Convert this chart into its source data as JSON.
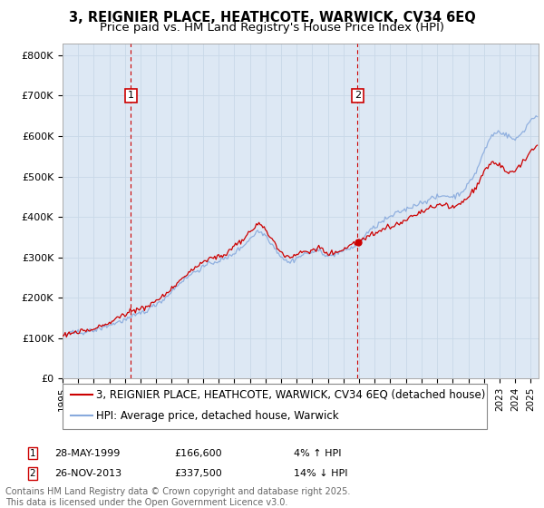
{
  "title": "3, REIGNIER PLACE, HEATHCOTE, WARWICK, CV34 6EQ",
  "subtitle": "Price paid vs. HM Land Registry's House Price Index (HPI)",
  "ylabel_ticks": [
    "£0",
    "£100K",
    "£200K",
    "£300K",
    "£400K",
    "£500K",
    "£600K",
    "£700K",
    "£800K"
  ],
  "ytick_values": [
    0,
    100000,
    200000,
    300000,
    400000,
    500000,
    600000,
    700000,
    800000
  ],
  "ylim": [
    0,
    830000
  ],
  "xlim_start": 1995.0,
  "xlim_end": 2025.5,
  "legend_line1": "3, REIGNIER PLACE, HEATHCOTE, WARWICK, CV34 6EQ (detached house)",
  "legend_line2": "HPI: Average price, detached house, Warwick",
  "marker1_date": 1999.38,
  "marker1_value": 166600,
  "marker2_date": 2013.9,
  "marker2_value": 337500,
  "footer_line1": "Contains HM Land Registry data © Crown copyright and database right 2025.",
  "footer_line2": "This data is licensed under the Open Government Licence v3.0.",
  "price_color": "#cc0000",
  "hpi_color": "#88aadd",
  "bg_color": "#dde8f4",
  "grid_color": "#c8d8e8",
  "marker_box_color": "#cc0000",
  "dashed_line_color": "#cc0000",
  "title_fontsize": 10.5,
  "subtitle_fontsize": 9.5,
  "tick_fontsize": 8,
  "legend_fontsize": 8.5,
  "footer_fontsize": 7
}
